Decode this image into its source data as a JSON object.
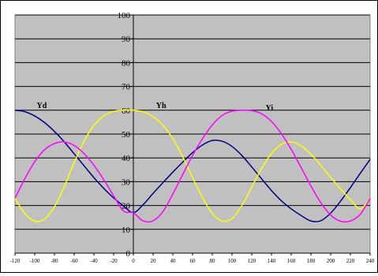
{
  "chart_data": {
    "type": "line",
    "xlim": [
      -120,
      240
    ],
    "ylim": [
      0,
      100
    ],
    "x_ticks": [
      -120,
      -100,
      -80,
      -60,
      -40,
      -20,
      0,
      20,
      40,
      60,
      80,
      100,
      120,
      140,
      160,
      180,
      200,
      220,
      240
    ],
    "y_ticks": [
      0,
      10,
      20,
      30,
      40,
      50,
      60,
      70,
      80,
      90,
      100
    ],
    "grid": "horizontal",
    "legend": "none",
    "plot_background": "#c0c0c0",
    "x": [
      -120,
      -110,
      -100,
      -90,
      -80,
      -70,
      -60,
      -50,
      -40,
      -30,
      -20,
      -10,
      0,
      10,
      20,
      30,
      40,
      50,
      60,
      70,
      80,
      90,
      100,
      110,
      120,
      130,
      140,
      150,
      160,
      170,
      180,
      190,
      200,
      210,
      220,
      230,
      240
    ],
    "series": [
      {
        "name": "Yd",
        "color": "#000080",
        "values": [
          60.0,
          59.4,
          57.6,
          54.8,
          51.1,
          46.7,
          41.7,
          36.7,
          31.7,
          27.2,
          23.2,
          19.8,
          17.0,
          20.4,
          25.1,
          29.6,
          34.0,
          38.2,
          42.2,
          45.4,
          47.3,
          47.0,
          44.8,
          41.0,
          36.2,
          31.2,
          26.3,
          22.0,
          18.6,
          15.8,
          13.5,
          13.6,
          16.8,
          21.8,
          27.5,
          33.5,
          39.4
        ]
      },
      {
        "name": "Yh",
        "color": "#ffff00",
        "values": [
          23.0,
          16.6,
          13.4,
          14.3,
          19.5,
          28.0,
          38.0,
          47.0,
          53.6,
          57.6,
          59.5,
          60.0,
          60.0,
          59.3,
          57.3,
          53.7,
          48.1,
          40.5,
          31.8,
          23.4,
          16.7,
          13.5,
          14.5,
          20.0,
          27.7,
          35.5,
          41.8,
          45.7,
          46.7,
          45.1,
          41.5,
          36.9,
          31.9,
          27.0,
          22.5,
          18.6,
          23.0
        ]
      },
      {
        "name": "Yi",
        "color": "#ff00ff",
        "values": [
          23.0,
          31.3,
          38.4,
          43.4,
          46.0,
          46.7,
          45.2,
          41.8,
          36.9,
          30.8,
          24.1,
          17.7,
          16.9,
          13.5,
          13.6,
          17.5,
          24.8,
          33.0,
          41.0,
          48.0,
          53.8,
          57.8,
          59.6,
          60.0,
          59.8,
          58.5,
          55.3,
          50.2,
          43.6,
          36.0,
          28.2,
          21.2,
          16.0,
          13.4,
          13.5,
          16.3,
          23.0
        ]
      }
    ],
    "annotations": [
      {
        "text": "Yd",
        "x": -98,
        "y": 61
      },
      {
        "text": "Yh",
        "x": 23,
        "y": 61
      },
      {
        "text": "Yi",
        "x": 134,
        "y": 60
      }
    ]
  }
}
